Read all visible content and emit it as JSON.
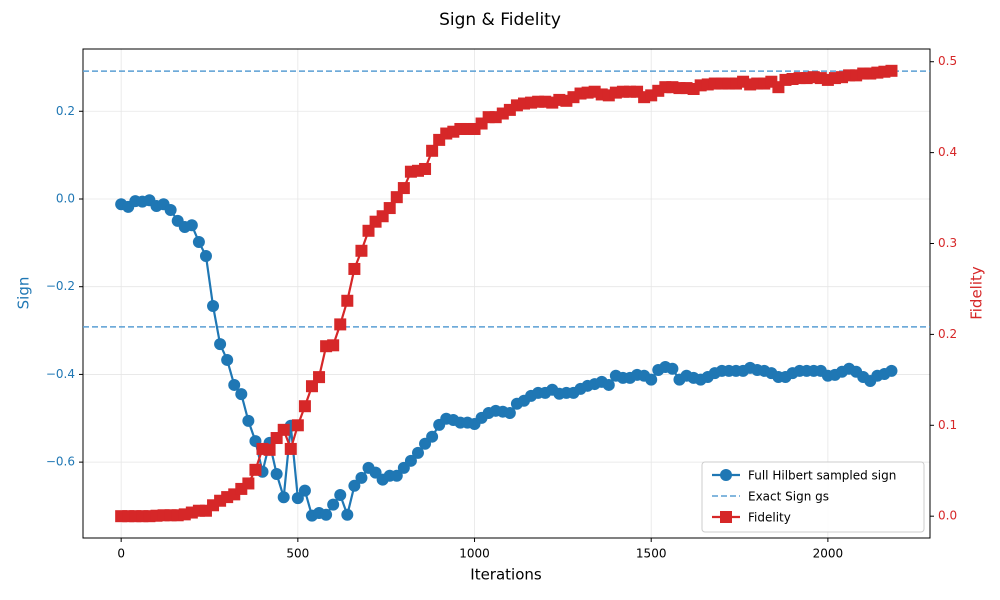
{
  "chart_data": {
    "type": "line",
    "title": "Sign & Fidelity",
    "xlabel": "Iterations",
    "ylabel": "Sign",
    "y2label": "Fidelity",
    "x": [
      0,
      20,
      40,
      60,
      80,
      100,
      120,
      140,
      160,
      180,
      200,
      220,
      240,
      260,
      280,
      300,
      320,
      340,
      360,
      380,
      400,
      420,
      440,
      460,
      480,
      500,
      520,
      540,
      560,
      580,
      600,
      620,
      640,
      660,
      680,
      700,
      720,
      740,
      760,
      780,
      800,
      820,
      840,
      860,
      880,
      900,
      920,
      940,
      960,
      980,
      1000,
      1020,
      1040,
      1060,
      1080,
      1100,
      1120,
      1140,
      1160,
      1180,
      1200,
      1220,
      1240,
      1260,
      1280,
      1300,
      1320,
      1340,
      1360,
      1380,
      1400,
      1420,
      1440,
      1460,
      1480,
      1500,
      1520,
      1540,
      1560,
      1580,
      1600,
      1620,
      1640,
      1660,
      1680,
      1700,
      1720,
      1740,
      1760,
      1780,
      1800,
      1820,
      1840,
      1860,
      1880,
      1900,
      1920,
      1940,
      1960,
      1980,
      2000,
      2020,
      2040,
      2060,
      2080,
      2100,
      2120,
      2140,
      2160,
      2180
    ],
    "xlim": [
      -108,
      2289
    ],
    "xticks": [
      0,
      500,
      1000,
      1500,
      2000
    ],
    "ylim": [
      -0.773,
      0.342
    ],
    "yticks": [
      {
        "value": -0.6,
        "label": "−0.6"
      },
      {
        "value": -0.4,
        "label": "−0.4"
      },
      {
        "value": -0.2,
        "label": "−0.2"
      },
      {
        "value": 0,
        "label": "0.0"
      },
      {
        "value": 0.2,
        "label": "0.2"
      }
    ],
    "y2lim": [
      -0.024,
      0.514
    ],
    "y2ticks": [
      {
        "value": 0,
        "label": "0.0"
      },
      0.1,
      0.2,
      0.3,
      0.4,
      0.5
    ],
    "grid": true,
    "legend": "lower right",
    "series": [
      {
        "name": "Full Hilbert sampled sign",
        "color": "#1f77b4",
        "marker": "circle",
        "values": [
          -0.012,
          -0.018,
          -0.005,
          -0.006,
          -0.003,
          -0.016,
          -0.012,
          -0.025,
          -0.05,
          -0.064,
          -0.06,
          -0.098,
          -0.13,
          -0.244,
          -0.331,
          -0.367,
          -0.424,
          -0.445,
          -0.506,
          -0.552,
          -0.622,
          -0.556,
          -0.627,
          -0.68,
          -0.517,
          -0.682,
          -0.665,
          -0.722,
          -0.716,
          -0.72,
          -0.697,
          -0.675,
          -0.72,
          -0.654,
          -0.636,
          -0.613,
          -0.624,
          -0.64,
          -0.631,
          -0.631,
          -0.613,
          -0.597,
          -0.579,
          -0.558,
          -0.542,
          -0.515,
          -0.501,
          -0.504,
          -0.51,
          -0.51,
          -0.513,
          -0.499,
          -0.488,
          -0.483,
          -0.485,
          -0.488,
          -0.467,
          -0.46,
          -0.449,
          -0.442,
          -0.442,
          -0.435,
          -0.444,
          -0.442,
          -0.442,
          -0.433,
          -0.426,
          -0.422,
          -0.417,
          -0.424,
          -0.403,
          -0.408,
          -0.408,
          -0.401,
          -0.403,
          -0.412,
          -0.39,
          -0.383,
          -0.387,
          -0.412,
          -0.403,
          -0.408,
          -0.412,
          -0.406,
          -0.397,
          -0.392,
          -0.392,
          -0.392,
          -0.392,
          -0.385,
          -0.39,
          -0.392,
          -0.397,
          -0.406,
          -0.406,
          -0.397,
          -0.392,
          -0.392,
          -0.392,
          -0.392,
          -0.403,
          -0.401,
          -0.394,
          -0.387,
          -0.394,
          -0.406,
          -0.415,
          -0.403,
          -0.399,
          -0.392
        ]
      },
      {
        "name": "Exact Sign gs",
        "color": "#5a9fd4",
        "style": "dashed",
        "hlines": [
          0.2915,
          -0.2915
        ]
      },
      {
        "name": "Fidelity",
        "color": "#d62728",
        "marker": "square",
        "axis": "y2",
        "values": [
          0,
          0,
          0,
          0,
          0,
          0.0005,
          0.001,
          0.001,
          0.001,
          0.002,
          0.004,
          0.006,
          0.006,
          0.012,
          0.017,
          0.021,
          0.024,
          0.03,
          0.036,
          0.051,
          0.074,
          0.073,
          0.086,
          0.095,
          0.074,
          0.1,
          0.121,
          0.143,
          0.153,
          0.187,
          0.188,
          0.211,
          0.237,
          0.272,
          0.292,
          0.314,
          0.324,
          0.33,
          0.339,
          0.351,
          0.361,
          0.379,
          0.38,
          0.382,
          0.402,
          0.414,
          0.421,
          0.423,
          0.426,
          0.426,
          0.426,
          0.432,
          0.439,
          0.439,
          0.443,
          0.447,
          0.452,
          0.454,
          0.455,
          0.456,
          0.456,
          0.455,
          0.458,
          0.457,
          0.461,
          0.465,
          0.466,
          0.467,
          0.464,
          0.463,
          0.466,
          0.467,
          0.467,
          0.467,
          0.461,
          0.463,
          0.468,
          0.472,
          0.472,
          0.471,
          0.471,
          0.47,
          0.474,
          0.475,
          0.476,
          0.476,
          0.476,
          0.476,
          0.478,
          0.475,
          0.476,
          0.476,
          0.478,
          0.472,
          0.48,
          0.481,
          0.482,
          0.482,
          0.483,
          0.482,
          0.48,
          0.482,
          0.483,
          0.485,
          0.485,
          0.487,
          0.487,
          0.488,
          0.489,
          0.49
        ]
      }
    ]
  }
}
